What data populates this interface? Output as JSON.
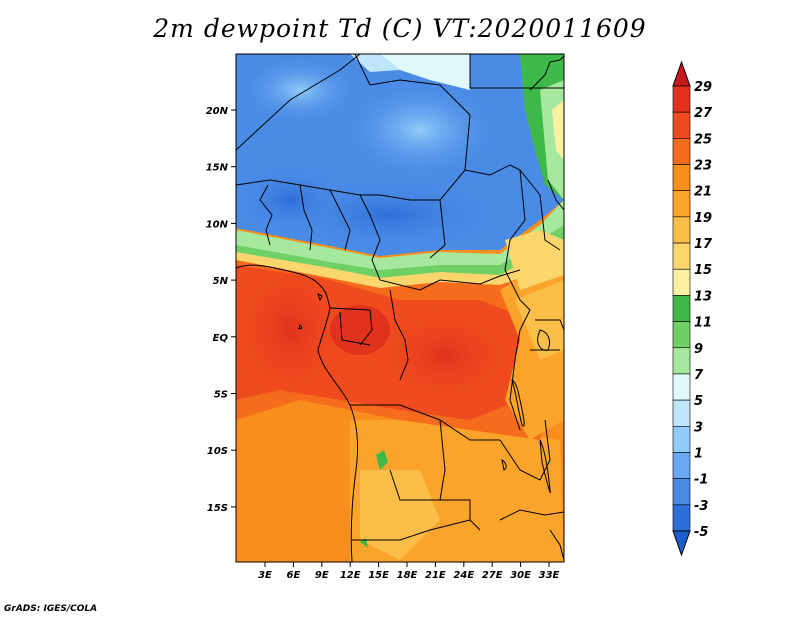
{
  "title": "2m dewpoint Td (C) VT:2020011609",
  "credit": "GrADS: IGES/COLA",
  "y_ticks": [
    "20N",
    "15N",
    "10N",
    "5N",
    "EQ",
    "5S",
    "10S",
    "15S"
  ],
  "x_ticks": [
    "3E",
    "6E",
    "9E",
    "12E",
    "15E",
    "18E",
    "21E",
    "24E",
    "27E",
    "30E",
    "33E"
  ],
  "colorbar": {
    "labels": [
      "29",
      "27",
      "25",
      "23",
      "21",
      "19",
      "17",
      "15",
      "13",
      "11",
      "9",
      "7",
      "5",
      "3",
      "1",
      "-1",
      "-3",
      "-5"
    ],
    "colors": [
      "#c8191c",
      "#e1321e",
      "#f04b1e",
      "#f56d1c",
      "#f88e1d",
      "#fba42b",
      "#fbbe49",
      "#fbd66c",
      "#fdf0a0",
      "#3fb84a",
      "#6fd066",
      "#a6e89d",
      "#e2f9fb",
      "#bfe6fb",
      "#91cbf8",
      "#6aa9f1",
      "#4a8be6",
      "#2d6fd9",
      "#1c5fd1"
    ]
  }
}
